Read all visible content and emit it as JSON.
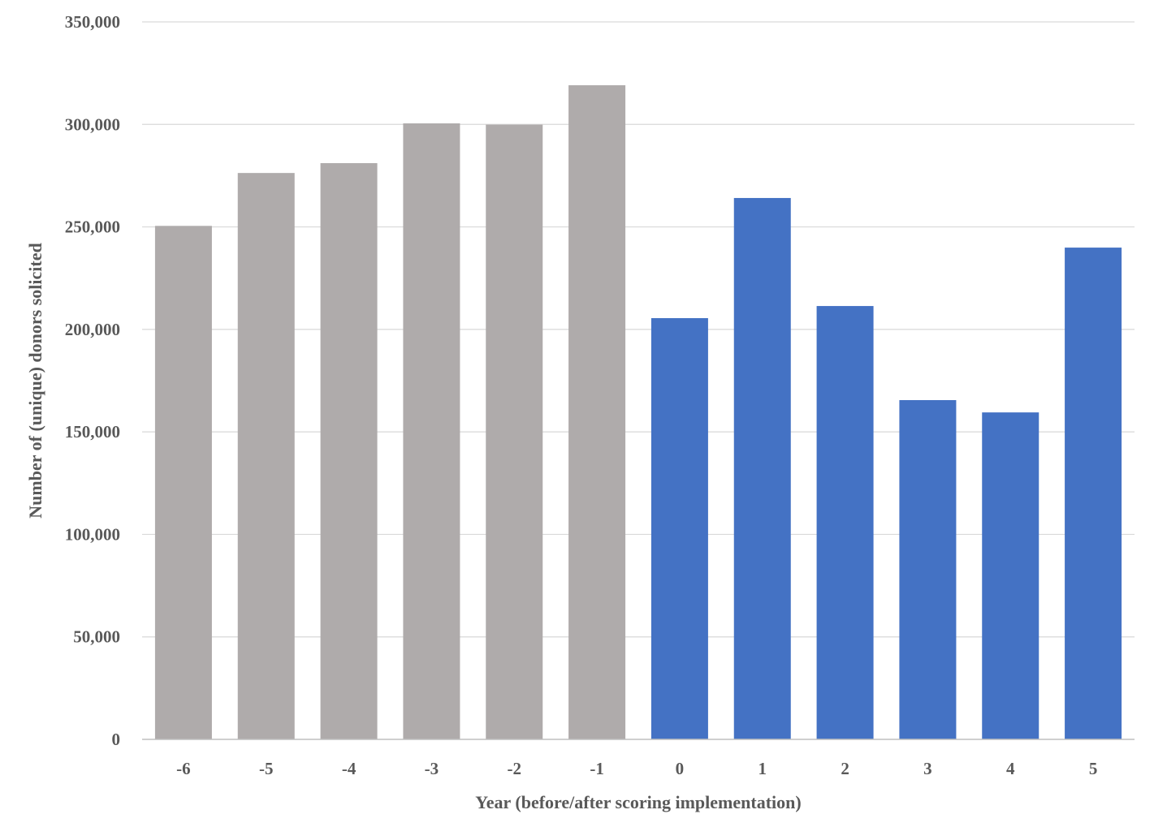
{
  "chart_data": {
    "type": "bar",
    "title": "",
    "xlabel": "Year (before/after scoring implementation)",
    "ylabel": "Number of (unique) donors solicited",
    "categories": [
      "-6",
      "-5",
      "-4",
      "-3",
      "-2",
      "-1",
      "0",
      "1",
      "2",
      "3",
      "4",
      "5"
    ],
    "values": [
      250500,
      276300,
      281100,
      300500,
      299900,
      319100,
      205500,
      264100,
      211400,
      165500,
      159500,
      239900
    ],
    "bar_colors": [
      "#AFABAB",
      "#AFABAB",
      "#AFABAB",
      "#AFABAB",
      "#AFABAB",
      "#AFABAB",
      "#4472C4",
      "#4472C4",
      "#4472C4",
      "#4472C4",
      "#4472C4",
      "#4472C4"
    ],
    "ylim": [
      0,
      350000
    ],
    "yticks": [
      0,
      50000,
      100000,
      150000,
      200000,
      250000,
      300000,
      350000
    ],
    "ytick_labels": [
      "0",
      "50,000",
      "100,000",
      "150,000",
      "200,000",
      "250,000",
      "300,000",
      "350,000"
    ],
    "grid": true,
    "legend": "none"
  }
}
